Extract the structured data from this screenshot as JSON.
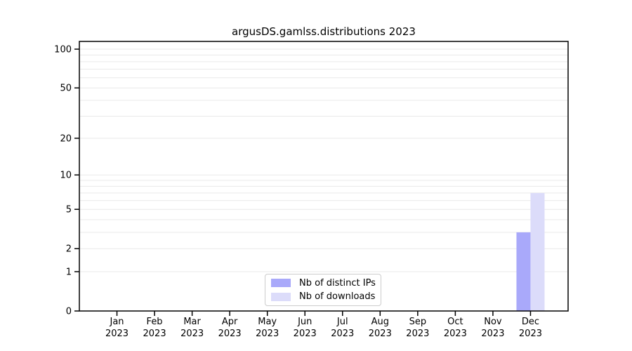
{
  "title": "argusDS.gamlss.distributions 2023",
  "colors": {
    "ips": "#a9a9fa",
    "downloads": "#dcdcfa",
    "grid": "#e9e9e9",
    "axis": "#000000",
    "tick_label": "#000000",
    "legend_border": "#cccccc",
    "background": "#ffffff"
  },
  "legend": {
    "items": [
      {
        "label": "Nb of distinct IPs",
        "color_key": "ips"
      },
      {
        "label": "Nb of downloads",
        "color_key": "downloads"
      }
    ]
  },
  "chart_data": {
    "type": "bar",
    "title": "argusDS.gamlss.distributions 2023",
    "categories": [
      "Jan 2023",
      "Feb 2023",
      "Mar 2023",
      "Apr 2023",
      "May 2023",
      "Jun 2023",
      "Jul 2023",
      "Aug 2023",
      "Sep 2023",
      "Oct 2023",
      "Nov 2023",
      "Dec 2023"
    ],
    "x_tick_line1": [
      "Jan",
      "Feb",
      "Mar",
      "Apr",
      "May",
      "Jun",
      "Jul",
      "Aug",
      "Sep",
      "Oct",
      "Nov",
      "Dec"
    ],
    "x_tick_line2": [
      "2023",
      "2023",
      "2023",
      "2023",
      "2023",
      "2023",
      "2023",
      "2023",
      "2023",
      "2023",
      "2023",
      "2023"
    ],
    "series": [
      {
        "name": "Nb of distinct IPs",
        "color_key": "ips",
        "values": [
          0,
          0,
          0,
          0,
          0,
          0,
          0,
          0,
          0,
          0,
          0,
          3
        ]
      },
      {
        "name": "Nb of downloads",
        "color_key": "downloads",
        "values": [
          0,
          0,
          0,
          0,
          0,
          0,
          0,
          0,
          0,
          0,
          0,
          7
        ]
      }
    ],
    "xlabel": "",
    "ylabel": "",
    "y_scale": "log1p",
    "y_ticks": [
      0,
      1,
      2,
      5,
      10,
      20,
      50,
      100
    ],
    "y_minor_gridlines": [
      1,
      2,
      3,
      4,
      5,
      6,
      7,
      8,
      9,
      10,
      20,
      30,
      40,
      50,
      60,
      70,
      80,
      90,
      100
    ],
    "grid": true,
    "legend_position": "bottom-center"
  }
}
